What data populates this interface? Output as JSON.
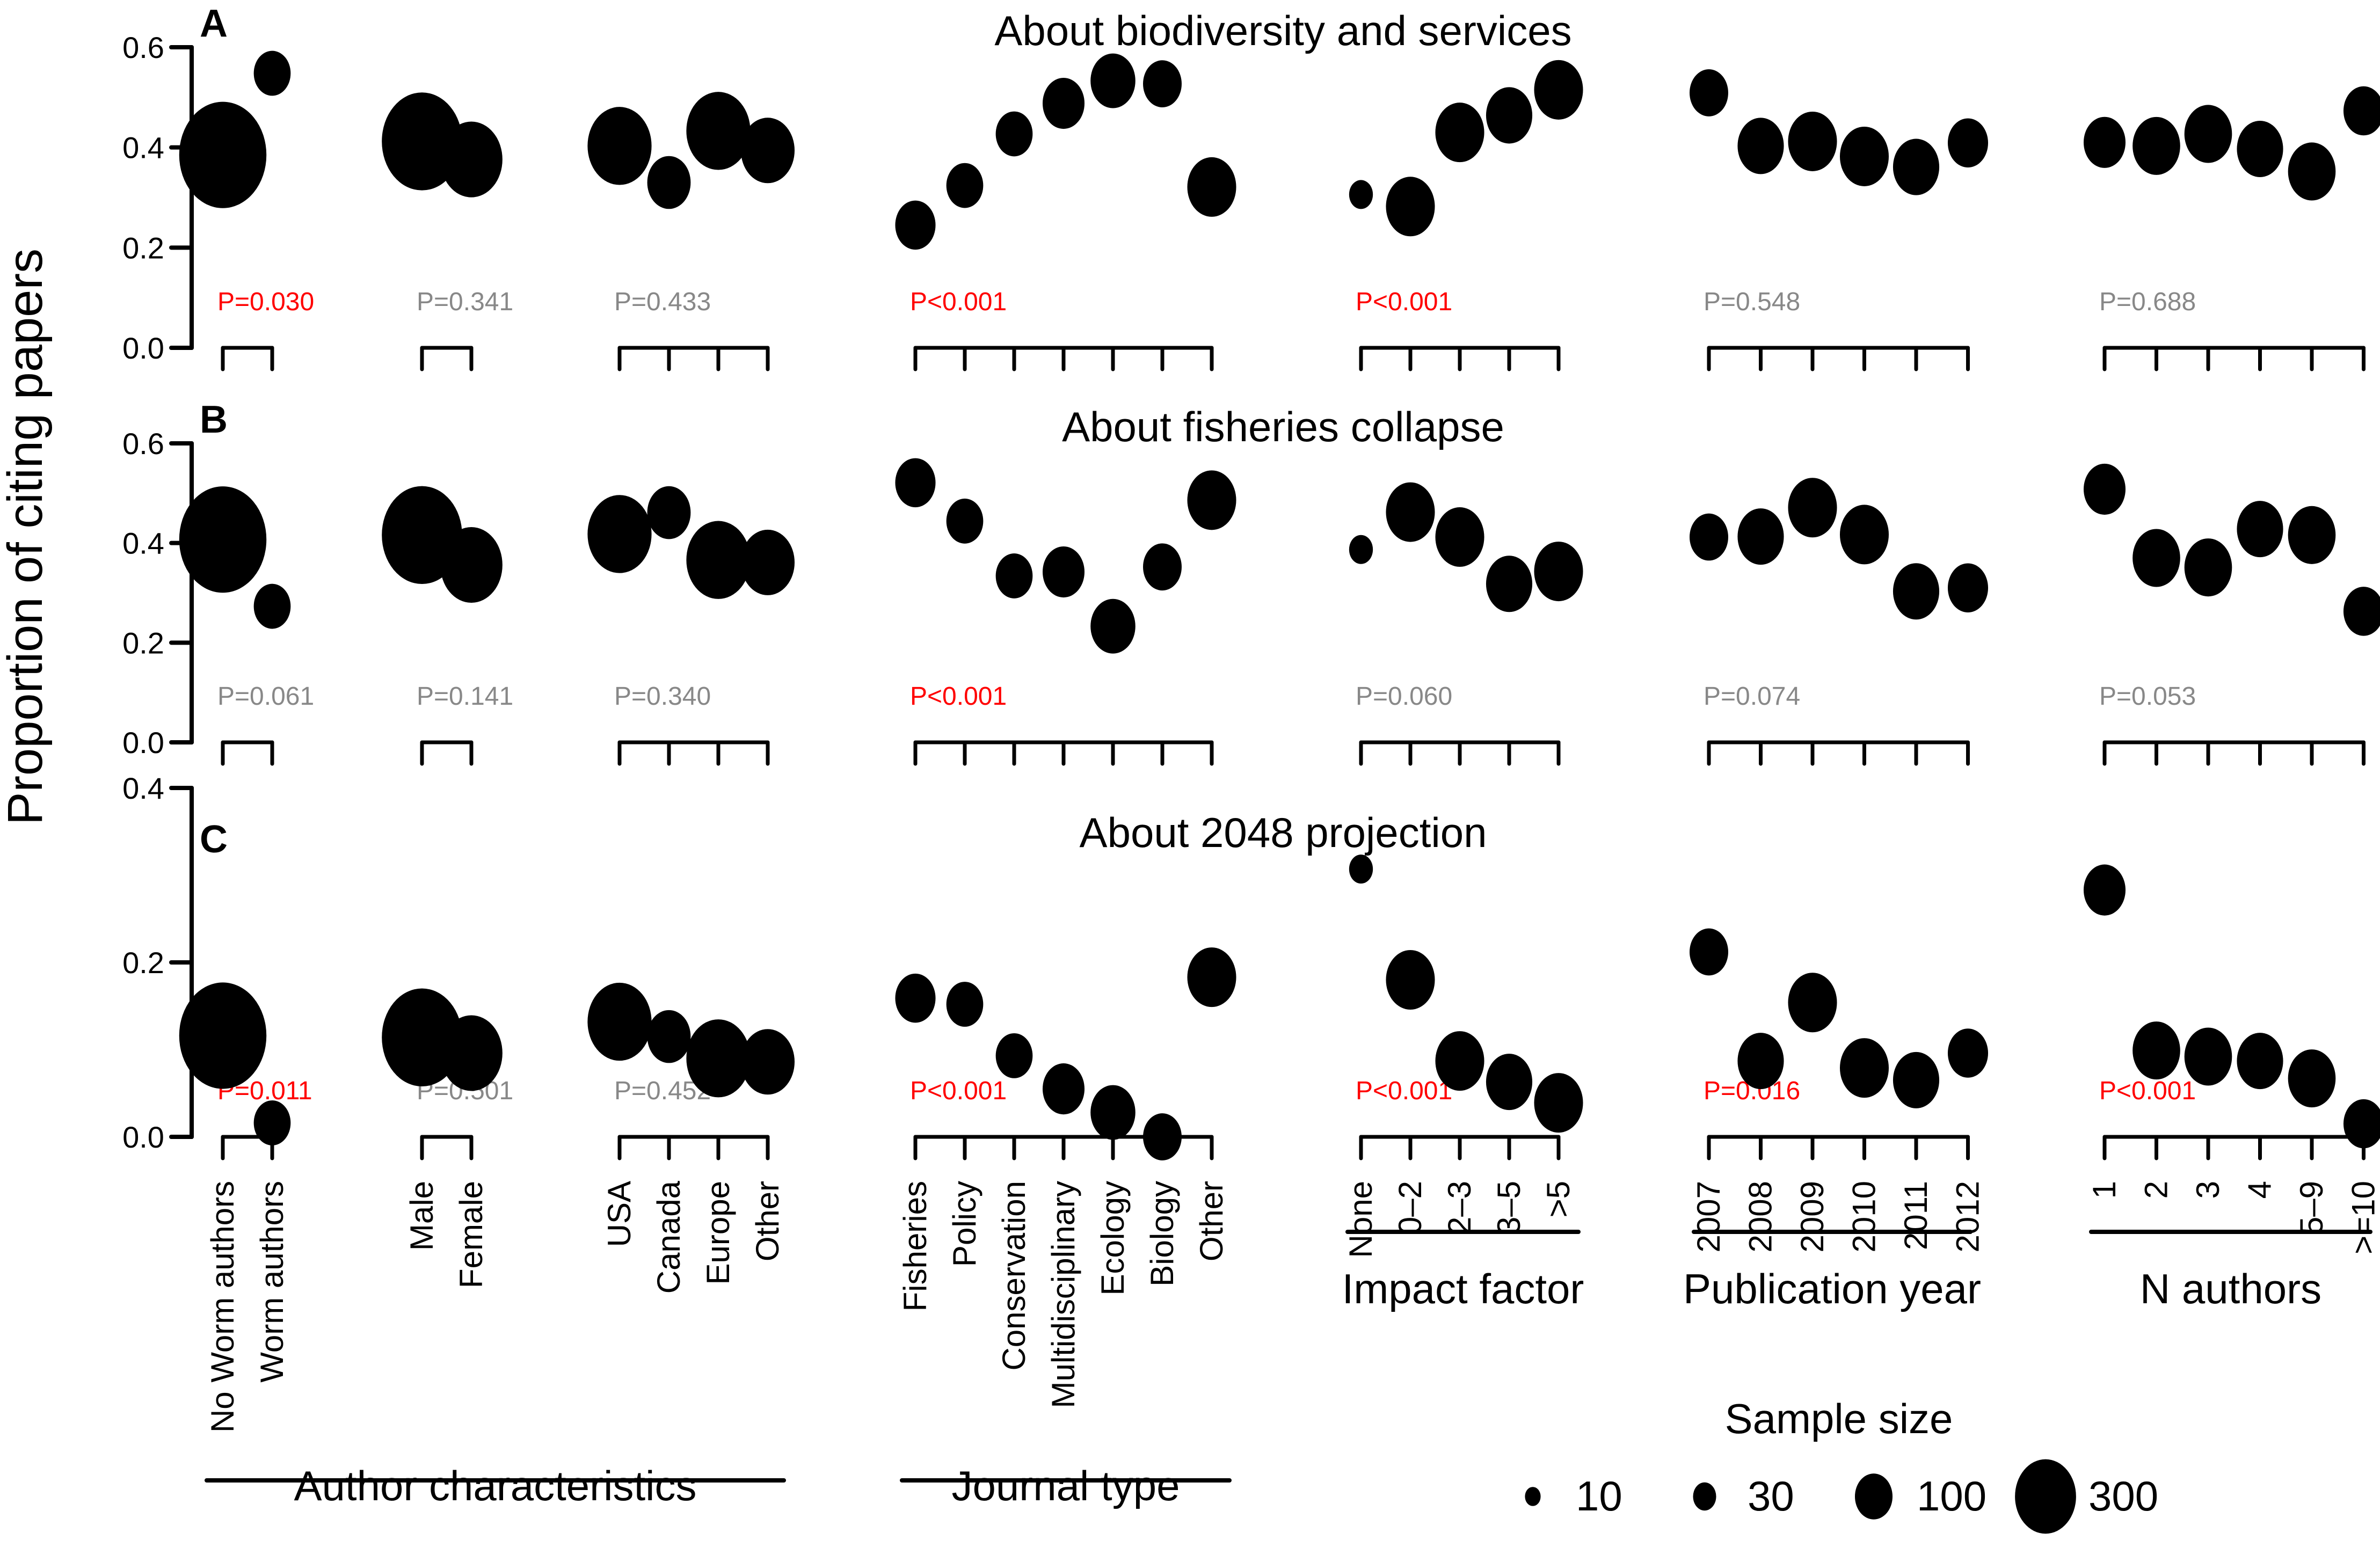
{
  "chart_data": {
    "type": "scatter",
    "ylabel": "Proportion of citing papers",
    "size_legend": {
      "title": "Sample size",
      "values": [
        10,
        30,
        100,
        300
      ]
    },
    "groups": [
      {
        "key": "worm",
        "super": "author",
        "categories": [
          "No Worm authors",
          "Worm authors"
        ]
      },
      {
        "key": "gender",
        "super": "author",
        "categories": [
          "Male",
          "Female"
        ]
      },
      {
        "key": "region",
        "super": "author",
        "categories": [
          "USA",
          "Canada",
          "Europe",
          "Other"
        ]
      },
      {
        "key": "journal",
        "super": "journal",
        "categories": [
          "Fisheries",
          "Policy",
          "Conservation",
          "Multidisciplinary",
          "Ecology",
          "Biology",
          "Other"
        ]
      },
      {
        "key": "impact",
        "super": "impact",
        "categories": [
          "None",
          "0–2",
          "2–3",
          "3–5",
          ">5"
        ]
      },
      {
        "key": "year",
        "super": "year",
        "categories": [
          "2007",
          "2008",
          "2009",
          "2010",
          "2011",
          "2012"
        ]
      },
      {
        "key": "nauthors",
        "super": "nauthors",
        "categories": [
          "1",
          "2",
          "3",
          "4",
          "5–9",
          ">=10"
        ]
      }
    ],
    "super_labels": {
      "author": "Author characteristics",
      "journal": "Journal type",
      "impact": "Impact factor",
      "year": "Publication year",
      "nauthors": "N authors"
    },
    "significance_colors": {
      "significant": "#ff0000",
      "not_significant": "#888888"
    },
    "panels": [
      {
        "letter": "A",
        "title": "About biodiversity and services",
        "ylim": [
          0,
          0.6
        ],
        "yticks": [
          "0.0",
          "0.2",
          "0.4",
          "0.6"
        ],
        "ytick_values": [
          0,
          0.2,
          0.4,
          0.6
        ],
        "series": {
          "worm": {
            "p": "P=0.030",
            "sig": true,
            "values": [
              0.385,
              0.548
            ],
            "n": [
              300,
              40
            ]
          },
          "gender": {
            "p": "P=0.341",
            "sig": false,
            "values": [
              0.412,
              0.376
            ],
            "n": [
              250,
              140
            ]
          },
          "region": {
            "p": "P=0.433",
            "sig": false,
            "values": [
              0.403,
              0.33,
              0.433,
              0.394
            ],
            "n": [
              150,
              60,
              150,
              100
            ]
          },
          "journal": {
            "p": "P<0.001",
            "sig": true,
            "values": [
              0.245,
              0.324,
              0.427,
              0.488,
              0.533,
              0.527,
              0.321
            ],
            "n": [
              50,
              40,
              40,
              55,
              65,
              45,
              80
            ]
          },
          "impact": {
            "p": "P<0.001",
            "sig": true,
            "values": [
              0.306,
              0.282,
              0.43,
              0.464,
              0.515
            ],
            "n": [
              12,
              80,
              80,
              70,
              80
            ]
          },
          "year": {
            "p": "P=0.548",
            "sig": false,
            "values": [
              0.509,
              0.403,
              0.412,
              0.382,
              0.361,
              0.409
            ],
            "n": [
              45,
              70,
              80,
              80,
              70,
              50
            ]
          },
          "nauthors": {
            "p": "P=0.688",
            "sig": false,
            "values": [
              0.41,
              0.403,
              0.427,
              0.397,
              0.352,
              0.473
            ],
            "n": [
              55,
              75,
              75,
              70,
              75,
              50
            ]
          }
        }
      },
      {
        "letter": "B",
        "title": "About fisheries collapse",
        "ylim": [
          0,
          0.6
        ],
        "yticks": [
          "0.0",
          "0.2",
          "0.4",
          "0.6"
        ],
        "ytick_values": [
          0,
          0.2,
          0.4,
          0.6
        ],
        "series": {
          "worm": {
            "p": "P=0.061",
            "sig": false,
            "values": [
              0.407,
              0.273
            ],
            "n": [
              300,
              40
            ]
          },
          "gender": {
            "p": "P=0.141",
            "sig": false,
            "values": [
              0.416,
              0.356
            ],
            "n": [
              250,
              140
            ]
          },
          "region": {
            "p": "P=0.340",
            "sig": false,
            "values": [
              0.418,
              0.461,
              0.366,
              0.361
            ],
            "n": [
              150,
              60,
              150,
              100
            ]
          },
          "journal": {
            "p": "P<0.001",
            "sig": true,
            "values": [
              0.521,
              0.444,
              0.334,
              0.342,
              0.233,
              0.352,
              0.486
            ],
            "n": [
              50,
              40,
              40,
              55,
              65,
              45,
              80
            ]
          },
          "impact": {
            "p": "P=0.060",
            "sig": false,
            "values": [
              0.387,
              0.462,
              0.412,
              0.318,
              0.343
            ],
            "n": [
              12,
              80,
              80,
              70,
              80
            ]
          },
          "year": {
            "p": "P=0.074",
            "sig": false,
            "values": [
              0.412,
              0.413,
              0.471,
              0.417,
              0.303,
              0.31
            ],
            "n": [
              45,
              70,
              80,
              80,
              70,
              50
            ]
          },
          "nauthors": {
            "p": "P=0.053",
            "sig": false,
            "values": [
              0.508,
              0.37,
              0.351,
              0.428,
              0.416,
              0.263
            ],
            "n": [
              55,
              75,
              75,
              70,
              75,
              50
            ]
          }
        }
      },
      {
        "letter": "C",
        "title": "About 2048 projection",
        "ylim": [
          0,
          0.4
        ],
        "yticks": [
          "0.0",
          "0.2",
          "0.4"
        ],
        "ytick_values": [
          0,
          0.2,
          0.4
        ],
        "series": {
          "worm": {
            "p": "P=0.011",
            "sig": true,
            "values": [
              0.116,
              0.016
            ],
            "n": [
              300,
              40
            ]
          },
          "gender": {
            "p": "P=0.501",
            "sig": false,
            "values": [
              0.114,
              0.096
            ],
            "n": [
              250,
              140
            ]
          },
          "region": {
            "p": "P=0.452",
            "sig": false,
            "values": [
              0.132,
              0.115,
              0.09,
              0.086
            ],
            "n": [
              150,
              60,
              150,
              100
            ]
          },
          "journal": {
            "p": "P<0.001",
            "sig": true,
            "values": [
              0.159,
              0.152,
              0.093,
              0.055,
              0.028,
              0.0,
              0.183
            ],
            "n": [
              50,
              40,
              40,
              55,
              65,
              45,
              80
            ]
          },
          "impact": {
            "p": "P<0.001",
            "sig": true,
            "values": [
              0.307,
              0.18,
              0.087,
              0.063,
              0.039
            ],
            "n": [
              12,
              80,
              80,
              70,
              80
            ]
          },
          "year": {
            "p": "P=0.016",
            "sig": true,
            "values": [
              0.212,
              0.087,
              0.154,
              0.079,
              0.065,
              0.096
            ],
            "n": [
              45,
              70,
              80,
              80,
              70,
              50
            ]
          },
          "nauthors": {
            "p": "P<0.001",
            "sig": true,
            "values": [
              0.283,
              0.099,
              0.092,
              0.087,
              0.067,
              0.015
            ],
            "n": [
              55,
              75,
              75,
              70,
              75,
              50
            ]
          }
        }
      }
    ]
  }
}
